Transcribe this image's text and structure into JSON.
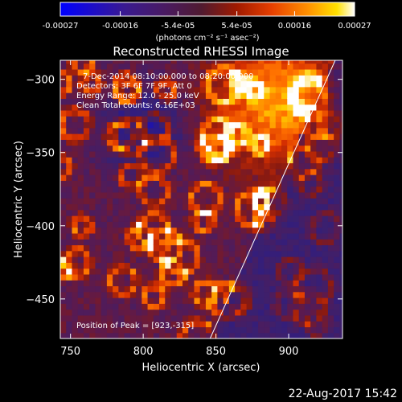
{
  "chart_data": {
    "type": "heatmap",
    "title": "Reconstructed RHESSI Image",
    "xlabel": "Heliocentric X (arcsec)",
    "ylabel": "Heliocentric Y (arcsec)",
    "xlim": [
      743,
      937
    ],
    "ylim": [
      -477,
      -287
    ],
    "x_ticks": [
      750,
      800,
      850,
      900
    ],
    "y_ticks": [
      -300,
      -350,
      -400,
      -450
    ],
    "grid": false,
    "colorbar": {
      "position": "top",
      "range": [
        -0.00027,
        0.00027
      ],
      "tick_values": [
        -0.00027,
        -0.00016,
        -5.4e-05,
        5.4e-05,
        0.00016,
        0.00027
      ],
      "tick_labels": [
        "-0.00027",
        "-0.00016",
        "-5.4e-05",
        "5.4e-05",
        "0.00016",
        "0.00027"
      ],
      "unit_label": "(photons cm⁻² s⁻¹ asec⁻²)"
    },
    "annotations": {
      "time": "7-Dec-2014 08:10:00.000 to 08:20:00.000",
      "detectors": "Detectors: 3F 6F 7F 9F, Att 0",
      "energy": "Energy Range: 12.0 - 25.0 keV",
      "clean": "Clean    Total counts: 6.16E+03",
      "peak": "Position of Peak = [923,-315]"
    },
    "limb_line": {
      "x": [
        846,
        932
      ],
      "y": [
        -477,
        -287
      ]
    },
    "peak": {
      "x": 923,
      "y": -315
    },
    "pixel_size_arcsec": 4
  },
  "footer": {
    "date": "22-Aug-2017 15:42"
  },
  "colors": {
    "background": "#000000",
    "text": "#ffffff",
    "colormap": [
      "#0000ff",
      "#2a1a8e",
      "#3a2070",
      "#5a1a50",
      "#8a1a10",
      "#d83000",
      "#ff7000",
      "#ffd000",
      "#ffffff"
    ]
  }
}
